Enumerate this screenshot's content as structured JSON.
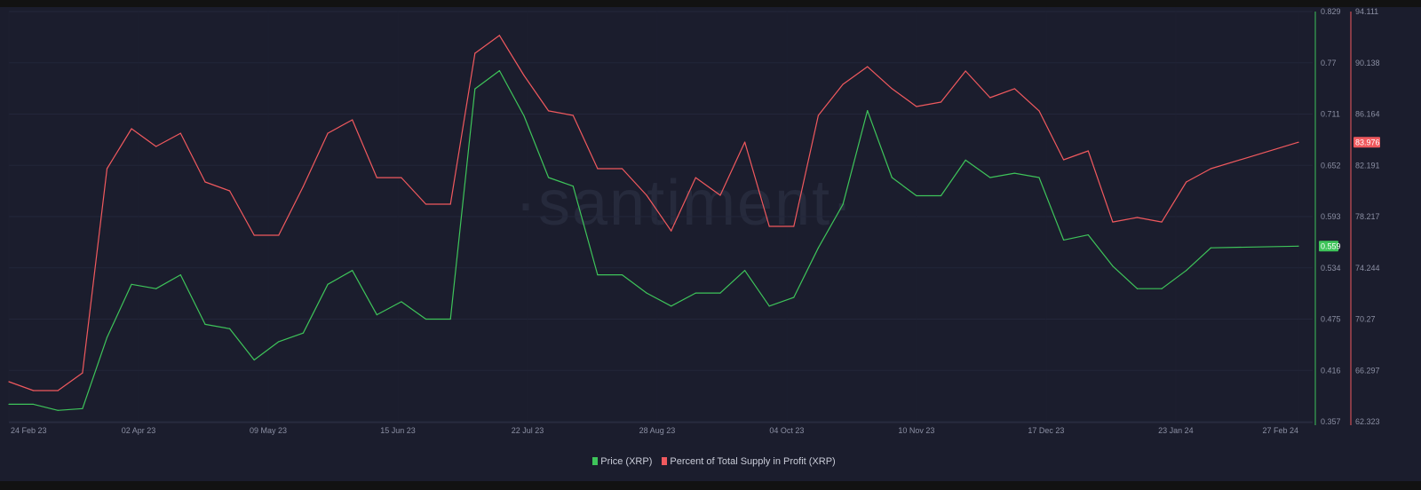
{
  "watermark": "·santiment·",
  "chart_data": {
    "type": "line",
    "title": "",
    "grid": true,
    "legend_position": "bottom",
    "x": [
      "2023-02-24",
      "2023-03-03",
      "2023-03-10",
      "2023-03-17",
      "2023-03-24",
      "2023-03-31",
      "2023-04-07",
      "2023-04-14",
      "2023-04-21",
      "2023-04-28",
      "2023-05-05",
      "2023-05-12",
      "2023-05-19",
      "2023-05-26",
      "2023-06-02",
      "2023-06-09",
      "2023-06-16",
      "2023-06-23",
      "2023-06-30",
      "2023-07-07",
      "2023-07-14",
      "2023-07-21",
      "2023-07-28",
      "2023-08-04",
      "2023-08-11",
      "2023-08-18",
      "2023-08-25",
      "2023-09-01",
      "2023-09-08",
      "2023-09-15",
      "2023-09-22",
      "2023-09-29",
      "2023-10-06",
      "2023-10-13",
      "2023-10-20",
      "2023-10-27",
      "2023-11-03",
      "2023-11-10",
      "2023-11-17",
      "2023-11-24",
      "2023-12-01",
      "2023-12-08",
      "2023-12-15",
      "2023-12-22",
      "2023-12-29",
      "2024-01-05",
      "2024-01-12",
      "2024-01-19",
      "2024-01-26",
      "2024-02-02",
      "2024-02-27"
    ],
    "x_range": [
      "2023-02-24",
      "2024-02-27"
    ],
    "x_ticks": [
      {
        "date": "2023-02-24",
        "label": "24 Feb 23"
      },
      {
        "date": "2023-04-02",
        "label": "02 Apr 23"
      },
      {
        "date": "2023-05-09",
        "label": "09 May 23"
      },
      {
        "date": "2023-06-15",
        "label": "15 Jun 23"
      },
      {
        "date": "2023-07-22",
        "label": "22 Jul 23"
      },
      {
        "date": "2023-08-28",
        "label": "28 Aug 23"
      },
      {
        "date": "2023-10-04",
        "label": "04 Oct 23"
      },
      {
        "date": "2023-11-10",
        "label": "10 Nov 23"
      },
      {
        "date": "2023-12-17",
        "label": "17 Dec 23"
      },
      {
        "date": "2024-01-23",
        "label": "23 Jan 24"
      },
      {
        "date": "2024-02-27",
        "label": "27 Feb 24"
      }
    ],
    "axes": {
      "price": {
        "range": [
          0.357,
          0.829
        ],
        "ticks": [
          "0.829",
          "0.77",
          "0.711",
          "0.652",
          "0.593",
          "0.534",
          "0.475",
          "0.416",
          "0.357"
        ],
        "color": "#3ec45a",
        "current": "0.559"
      },
      "profit": {
        "range": [
          62.323,
          94.111
        ],
        "ticks": [
          "94.111",
          "90.138",
          "86.164",
          "82.191",
          "78.217",
          "74.244",
          "70.27",
          "66.297",
          "62.323"
        ],
        "color": "#f0595e",
        "current": "83.976"
      }
    },
    "series": [
      {
        "name": "Price (XRP)",
        "axis": "price",
        "color": "#3ec45a",
        "values": [
          0.377,
          0.377,
          0.37,
          0.372,
          0.454,
          0.515,
          0.51,
          0.526,
          0.469,
          0.464,
          0.428,
          0.449,
          0.459,
          0.515,
          0.531,
          0.48,
          0.495,
          0.475,
          0.475,
          0.74,
          0.761,
          0.709,
          0.638,
          0.628,
          0.526,
          0.526,
          0.505,
          0.49,
          0.505,
          0.505,
          0.531,
          0.49,
          0.5,
          0.557,
          0.607,
          0.715,
          0.638,
          0.617,
          0.617,
          0.658,
          0.638,
          0.643,
          0.638,
          0.566,
          0.572,
          0.536,
          0.51,
          0.51,
          0.531,
          0.557,
          0.559
        ]
      },
      {
        "name": "Percent of Total Supply in Profit (XRP)",
        "axis": "profit",
        "color": "#f0595e",
        "values": [
          65.42,
          64.73,
          64.73,
          66.1,
          81.93,
          85.03,
          83.65,
          84.68,
          80.9,
          80.21,
          76.77,
          76.77,
          80.55,
          84.68,
          85.72,
          81.24,
          81.24,
          79.18,
          79.18,
          90.88,
          92.26,
          89.16,
          86.41,
          86.06,
          81.93,
          81.93,
          79.87,
          77.11,
          81.24,
          79.87,
          83.99,
          77.46,
          77.46,
          86.06,
          88.47,
          89.84,
          88.13,
          86.75,
          87.09,
          89.5,
          87.44,
          88.13,
          86.41,
          82.62,
          83.31,
          77.8,
          78.15,
          77.8,
          80.9,
          81.93,
          83.98
        ]
      }
    ]
  }
}
